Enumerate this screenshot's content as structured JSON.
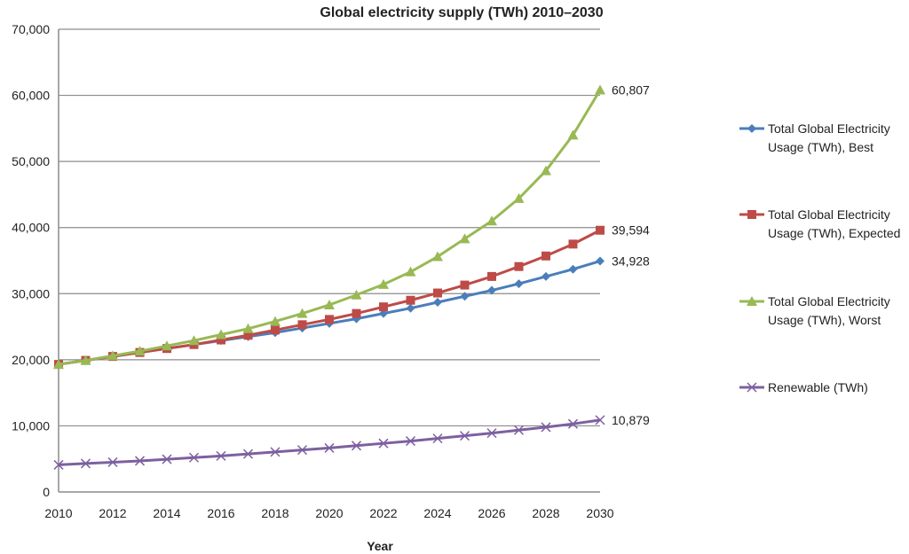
{
  "chart_data": {
    "type": "line",
    "title": "Global electricity supply (TWh) 2010–2030",
    "xlabel": "Year",
    "ylabel": "",
    "xlim": [
      2010,
      2030
    ],
    "ylim": [
      0,
      70000
    ],
    "grid": true,
    "legend_position": "right",
    "x": [
      2010,
      2011,
      2012,
      2013,
      2014,
      2015,
      2016,
      2017,
      2018,
      2019,
      2020,
      2021,
      2022,
      2023,
      2024,
      2025,
      2026,
      2027,
      2028,
      2029,
      2030
    ],
    "x_tick_labels": [
      "2010",
      "2012",
      "2014",
      "2016",
      "2018",
      "2020",
      "2022",
      "2024",
      "2026",
      "2028",
      "2030"
    ],
    "y_tick_labels": [
      "0",
      "10,000",
      "20,000",
      "30,000",
      "40,000",
      "50,000",
      "60,000",
      "70,000"
    ],
    "y_ticks": [
      0,
      10000,
      20000,
      30000,
      40000,
      50000,
      60000,
      70000
    ],
    "series": [
      {
        "name": "Total Global Electricity Usage (TWh), Best",
        "color": "#4a7ebb",
        "marker": "diamond",
        "values": [
          19300,
          19900,
          20500,
          21100,
          21700,
          22300,
          22900,
          23500,
          24100,
          24800,
          25500,
          26200,
          27000,
          27800,
          28700,
          29600,
          30500,
          31500,
          32600,
          33700,
          34928
        ],
        "end_label": "34,928"
      },
      {
        "name": "Total Global Electricity Usage (TWh), Expected",
        "color": "#be4b48",
        "marker": "square",
        "values": [
          19300,
          19900,
          20500,
          21100,
          21700,
          22300,
          23000,
          23700,
          24500,
          25300,
          26100,
          27000,
          28000,
          29000,
          30100,
          31300,
          32600,
          34100,
          35700,
          37500,
          39594
        ],
        "end_label": "39,594"
      },
      {
        "name": "Total Global Electricity Usage (TWh), Worst",
        "color": "#98b954",
        "marker": "triangle",
        "values": [
          19300,
          19900,
          20600,
          21300,
          22100,
          22900,
          23800,
          24700,
          25800,
          27000,
          28300,
          29800,
          31400,
          33300,
          35600,
          38300,
          41000,
          44400,
          48600,
          54000,
          60807
        ],
        "end_label": "60,807"
      },
      {
        "name": "Renewable (TWh)",
        "color": "#7d60a0",
        "marker": "x",
        "values": [
          4100,
          4300,
          4500,
          4700,
          4950,
          5200,
          5450,
          5750,
          6050,
          6350,
          6650,
          7000,
          7350,
          7700,
          8100,
          8500,
          8900,
          9350,
          9800,
          10300,
          10879
        ],
        "end_label": "10,879"
      }
    ]
  }
}
